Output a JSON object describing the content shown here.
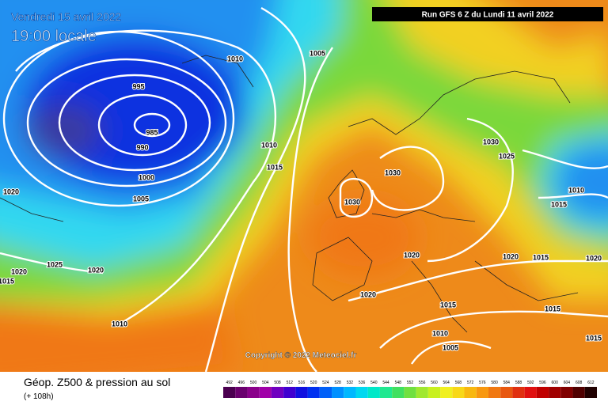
{
  "header": {
    "date": "Vendredi 15 avril 2022",
    "time": "19:00 locale",
    "run": "Run GFS 6 Z du Lundi 11 avril 2022"
  },
  "copyright": "Copyright © 2022 Meteociel.fr",
  "footer": {
    "title": "Géop. Z500 & pression au sol",
    "lead": "(+ 108h)"
  },
  "isobar_labels": [
    1010,
    1005,
    995,
    985,
    990,
    1000,
    1005,
    1010,
    1015,
    1030,
    1030,
    1025,
    1020,
    1010,
    1015,
    1030,
    1025,
    1020,
    1015,
    1020,
    1020,
    1020,
    1015,
    1020,
    1020,
    1015,
    1015,
    1010,
    1010,
    1005,
    1015
  ],
  "scale": {
    "values": [
      492,
      496,
      500,
      504,
      508,
      512,
      516,
      520,
      524,
      528,
      532,
      536,
      540,
      544,
      548,
      552,
      556,
      560,
      564,
      568,
      572,
      576,
      580,
      584,
      588,
      592,
      596,
      600,
      604,
      608,
      612
    ],
    "colors": [
      "#4b0050",
      "#6a006e",
      "#8a008a",
      "#a000a8",
      "#7000c0",
      "#4000d0",
      "#1010e0",
      "#0030f0",
      "#0060f8",
      "#0090ff",
      "#00b8ff",
      "#00d8f0",
      "#00e8c8",
      "#20e890",
      "#40e060",
      "#70e040",
      "#a0e830",
      "#c8f020",
      "#f0f020",
      "#f8d818",
      "#f8b810",
      "#f89810",
      "#f07810",
      "#e85810",
      "#e03010",
      "#e01010",
      "#c00000",
      "#a00000",
      "#800000",
      "#500000",
      "#200000"
    ]
  }
}
